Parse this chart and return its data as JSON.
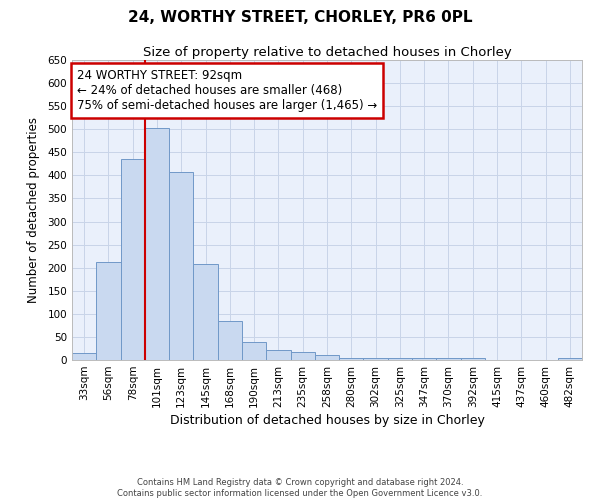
{
  "title1": "24, WORTHY STREET, CHORLEY, PR6 0PL",
  "title2": "Size of property relative to detached houses in Chorley",
  "xlabel": "Distribution of detached houses by size in Chorley",
  "ylabel": "Number of detached properties",
  "categories": [
    "33sqm",
    "56sqm",
    "78sqm",
    "101sqm",
    "123sqm",
    "145sqm",
    "168sqm",
    "190sqm",
    "213sqm",
    "235sqm",
    "258sqm",
    "280sqm",
    "302sqm",
    "325sqm",
    "347sqm",
    "370sqm",
    "392sqm",
    "415sqm",
    "437sqm",
    "460sqm",
    "482sqm"
  ],
  "values": [
    15,
    213,
    435,
    502,
    407,
    207,
    85,
    38,
    22,
    18,
    10,
    5,
    4,
    4,
    4,
    4,
    4,
    1,
    1,
    1,
    4
  ],
  "bar_color": "#c9d9f0",
  "bar_edge_color": "#7098c8",
  "red_line_x": 3.0,
  "annotation_text": "24 WORTHY STREET: 92sqm\n← 24% of detached houses are smaller (468)\n75% of semi-detached houses are larger (1,465) →",
  "annotation_box_color": "white",
  "annotation_box_edge_color": "#cc0000",
  "red_line_color": "#cc0000",
  "ylim": [
    0,
    650
  ],
  "yticks": [
    0,
    50,
    100,
    150,
    200,
    250,
    300,
    350,
    400,
    450,
    500,
    550,
    600,
    650
  ],
  "grid_color": "#c8d4e8",
  "background_color": "#eaf0fb",
  "footnote": "Contains HM Land Registry data © Crown copyright and database right 2024.\nContains public sector information licensed under the Open Government Licence v3.0.",
  "title_fontsize": 11,
  "subtitle_fontsize": 9.5,
  "xlabel_fontsize": 9,
  "ylabel_fontsize": 8.5,
  "tick_fontsize": 7.5,
  "annot_fontsize": 8.5,
  "footnote_fontsize": 6
}
